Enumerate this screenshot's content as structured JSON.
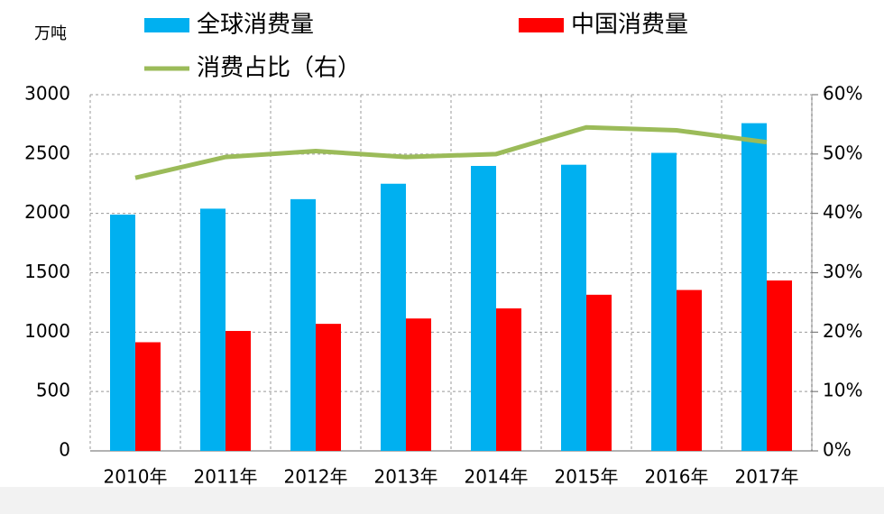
{
  "chart_data": {
    "type": "bar_line",
    "unit": "万吨",
    "categories": [
      "2010年",
      "2011年",
      "2012年",
      "2013年",
      "2014年",
      "2015年",
      "2016年",
      "2017年"
    ],
    "series": [
      {
        "name": "全球消费量",
        "color": "#00b0f0",
        "values": [
          1990,
          2040,
          2120,
          2250,
          2400,
          2410,
          2510,
          2760
        ]
      },
      {
        "name": "中国消费量",
        "color": "#ff0000",
        "values": [
          915,
          1010,
          1070,
          1115,
          1200,
          1315,
          1355,
          1435
        ]
      },
      {
        "name": "消费占比（右）",
        "color": "#9bbb59",
        "axis": "y2",
        "values": [
          46,
          49.5,
          50.5,
          49.5,
          50,
          54.5,
          54,
          52
        ]
      }
    ],
    "ylim": [
      0,
      3000
    ],
    "yticks": [
      0,
      500,
      1000,
      1500,
      2000,
      2500,
      3000
    ],
    "y2lim": [
      0,
      60
    ],
    "y2ticks": [
      {
        "value": 0,
        "label": "0%"
      },
      {
        "value": 10,
        "label": "10%"
      },
      {
        "value": 20,
        "label": "20%"
      },
      {
        "value": 30,
        "label": "30%"
      },
      {
        "value": 40,
        "label": "40%"
      },
      {
        "value": 50,
        "label": "50%"
      },
      {
        "value": 60,
        "label": "60%"
      }
    ],
    "grid": true
  }
}
